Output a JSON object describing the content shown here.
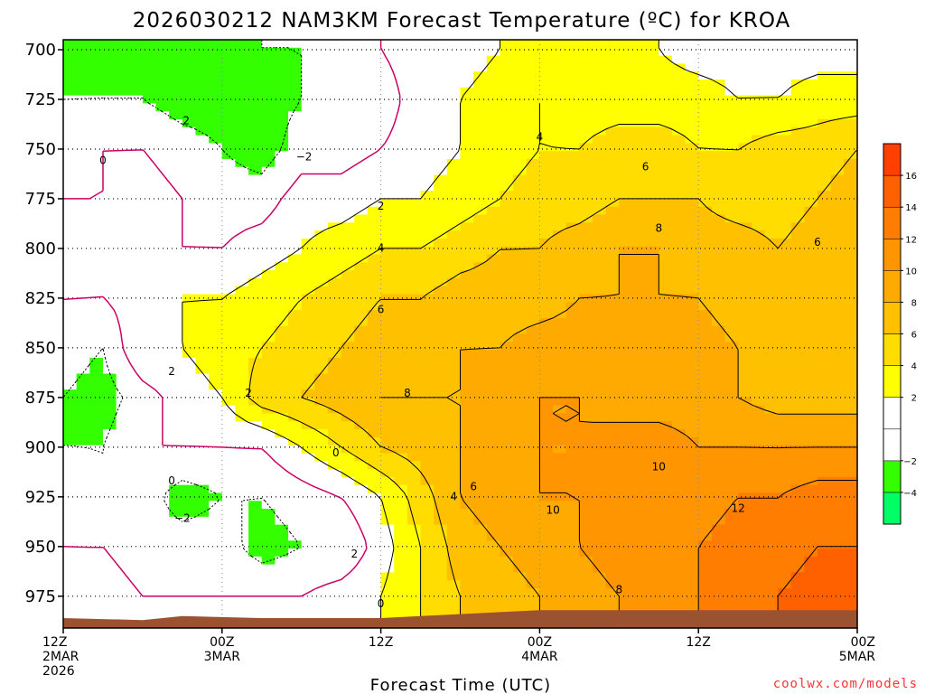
{
  "chart_data": {
    "type": "heatmap",
    "title": "2026030212 NAM3KM Forecast Temperature (ºC) for KROA",
    "xlabel": "Forecast Time (UTC)",
    "ylabel": "",
    "y_ticks": [
      "700",
      "725",
      "750",
      "775",
      "800",
      "825",
      "850",
      "875",
      "900",
      "925",
      "950",
      "975"
    ],
    "y_tick_values": [
      700,
      725,
      750,
      775,
      800,
      825,
      850,
      875,
      900,
      925,
      950,
      975
    ],
    "ylim": [
      695,
      991
    ],
    "xlim_hours": [
      0,
      60
    ],
    "x_ticks": [
      {
        "hour": 0,
        "lines": [
          "12Z",
          "2MAR",
          "2026"
        ]
      },
      {
        "hour": 12,
        "lines": [
          "00Z",
          "3MAR"
        ]
      },
      {
        "hour": 24,
        "lines": [
          "12Z"
        ]
      },
      {
        "hour": 36,
        "lines": [
          "00Z",
          "4MAR"
        ]
      },
      {
        "hour": 48,
        "lines": [
          "12Z"
        ]
      },
      {
        "hour": 60,
        "lines": [
          "00Z",
          "5MAR"
        ]
      }
    ],
    "colorbar": {
      "levels": [
        -6,
        -4,
        -2,
        0,
        2,
        4,
        6,
        8,
        10,
        12,
        14,
        16,
        18
      ],
      "labels": [
        "16",
        "14",
        "12",
        "10",
        "8",
        "6",
        "4",
        "2",
        "−2",
        "−4"
      ],
      "label_values": [
        16,
        14,
        12,
        10,
        8,
        6,
        4,
        2,
        -2,
        -4
      ],
      "colors": {
        "-6": "#00ff66",
        "-4": "#33ff00",
        "-2": "#ffffff",
        "0": "#ffffff",
        "2": "#ffff00",
        "4": "#ffdd00",
        "6": "#ffc000",
        "8": "#ffaa00",
        "10": "#ff9500",
        "12": "#ff7d00",
        "14": "#ff6000",
        "16": "#ff4000"
      }
    },
    "hours": [
      0,
      3,
      6,
      9,
      12,
      15,
      18,
      21,
      24,
      27,
      30,
      33,
      36,
      39,
      42,
      45,
      48,
      51,
      54,
      57,
      60
    ],
    "levels_mb": [
      700,
      725,
      750,
      775,
      800,
      825,
      850,
      875,
      900,
      925,
      950,
      975
    ],
    "temperature": [
      [
        -3,
        -3,
        -3,
        -3,
        -3,
        -2,
        -2,
        -1,
        0,
        1,
        1,
        2,
        2,
        2,
        2,
        2,
        1,
        1,
        1,
        1,
        1
      ],
      [
        -2,
        -2,
        -2,
        -3,
        -3,
        -3,
        -2,
        -1,
        -1,
        1,
        2,
        3,
        4,
        3,
        3,
        3,
        3,
        2,
        2,
        3,
        3
      ],
      [
        -1,
        0,
        0,
        -1,
        -2,
        -3,
        -1,
        -1,
        0,
        1,
        2,
        3,
        4,
        4,
        5,
        5,
        4,
        4,
        5,
        5,
        6
      ],
      [
        0,
        0,
        1,
        0,
        -1,
        -1,
        1,
        1,
        2,
        2,
        3,
        4,
        5,
        5,
        6,
        6,
        6,
        5,
        5,
        6,
        7
      ],
      [
        2,
        1,
        1,
        0,
        0,
        1,
        2,
        3,
        4,
        4,
        5,
        6,
        6,
        7,
        8,
        8,
        7,
        7,
        6,
        7,
        7
      ],
      [
        0,
        0,
        1,
        2,
        2,
        3,
        4,
        5,
        6,
        6,
        7,
        7,
        7,
        8,
        8,
        8,
        8,
        7,
        7,
        7,
        6
      ],
      [
        -1,
        -2,
        2,
        2,
        3,
        4,
        5,
        6,
        7,
        7,
        8,
        8,
        9,
        9,
        9,
        10,
        9,
        8,
        7,
        7,
        6
      ],
      [
        -2,
        -3,
        -1,
        1,
        2,
        5,
        6,
        7,
        8,
        8,
        8,
        9,
        10,
        10,
        9,
        9,
        9,
        8,
        7,
        7,
        7
      ],
      [
        -2,
        -2,
        0,
        0,
        0,
        0,
        2,
        4,
        6,
        7,
        8,
        9,
        10,
        10,
        11,
        11,
        10,
        10,
        10,
        10,
        10
      ],
      [
        -1,
        -2,
        -1,
        -3,
        -2,
        -2,
        -1,
        0,
        2,
        5,
        8,
        9,
        10,
        10,
        11,
        11,
        11,
        12,
        12,
        13,
        13
      ],
      [
        0,
        0,
        -1,
        -1,
        -1,
        -3,
        -2,
        -2,
        1,
        4,
        7,
        8,
        9,
        10,
        11,
        12,
        12,
        13,
        13,
        14,
        14
      ],
      [
        1,
        1,
        0,
        0,
        0,
        0,
        0,
        1,
        2,
        4,
        6,
        7,
        8,
        9,
        10,
        11,
        12,
        13,
        14,
        15,
        15
      ]
    ],
    "contour_labels": [
      {
        "text": "2",
        "hour": 9.3,
        "mb": 736
      },
      {
        "text": "0",
        "hour": 3.0,
        "mb": 756
      },
      {
        "text": "−2",
        "hour": 18.2,
        "mb": 754
      },
      {
        "text": "2",
        "hour": 24.0,
        "mb": 779
      },
      {
        "text": "4",
        "hour": 24.0,
        "mb": 800
      },
      {
        "text": "4",
        "hour": 36.0,
        "mb": 744
      },
      {
        "text": "6",
        "hour": 44.0,
        "mb": 759
      },
      {
        "text": "8",
        "hour": 45.0,
        "mb": 790
      },
      {
        "text": "6",
        "hour": 57.0,
        "mb": 797
      },
      {
        "text": "6",
        "hour": 24.0,
        "mb": 831
      },
      {
        "text": "8",
        "hour": 26.0,
        "mb": 873
      },
      {
        "text": "2",
        "hour": 8.2,
        "mb": 862
      },
      {
        "text": "2",
        "hour": 14.0,
        "mb": 873
      },
      {
        "text": "0",
        "hour": 20.6,
        "mb": 903
      },
      {
        "text": "0",
        "hour": 8.2,
        "mb": 917
      },
      {
        "text": "−2",
        "hour": 9.0,
        "mb": 936
      },
      {
        "text": "2",
        "hour": 22.0,
        "mb": 954
      },
      {
        "text": "4",
        "hour": 29.5,
        "mb": 925
      },
      {
        "text": "6",
        "hour": 31.0,
        "mb": 920
      },
      {
        "text": "10",
        "hour": 45.0,
        "mb": 910
      },
      {
        "text": "10",
        "hour": 37.0,
        "mb": 932
      },
      {
        "text": "12",
        "hour": 51.0,
        "mb": 931
      },
      {
        "text": "8",
        "hour": 42.0,
        "mb": 972
      },
      {
        "text": "0",
        "hour": 24.0,
        "mb": 979
      }
    ]
  },
  "credit": "coolwx.com/models",
  "colors": {
    "ground": "#9a5230",
    "isotherm_zero": "#cc0066",
    "credit": "#ff3333"
  }
}
